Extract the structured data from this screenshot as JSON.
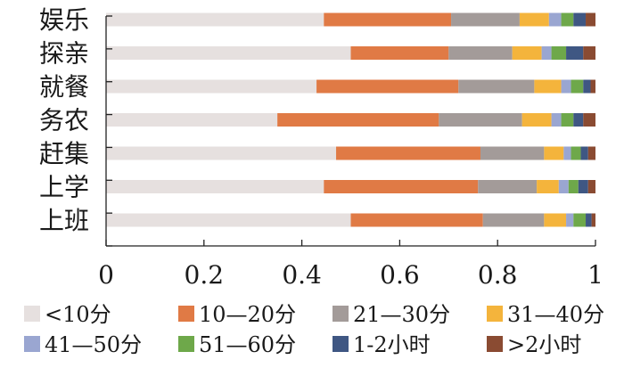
{
  "chart_data": {
    "type": "bar",
    "orientation": "horizontal",
    "stacked": true,
    "title": "",
    "xlabel": "",
    "ylabel": "",
    "xlim": [
      0,
      1
    ],
    "xticks": [
      "0",
      "0.2",
      "0.4",
      "0.6",
      "0.8",
      "1"
    ],
    "grid": false,
    "legend_position": "bottom",
    "categories": [
      "娱乐",
      "探亲",
      "就餐",
      "务农",
      "赶集",
      "上学",
      "上班"
    ],
    "series": [
      {
        "name": "<10分",
        "color": "#e6e0df",
        "values": [
          0.445,
          0.5,
          0.43,
          0.35,
          0.47,
          0.445,
          0.5
        ]
      },
      {
        "name": "10—20分",
        "color": "#e07a45",
        "values": [
          0.26,
          0.2,
          0.29,
          0.33,
          0.295,
          0.315,
          0.27
        ]
      },
      {
        "name": "21—30分",
        "color": "#a39b99",
        "values": [
          0.14,
          0.13,
          0.155,
          0.17,
          0.13,
          0.12,
          0.125
        ]
      },
      {
        "name": "31—40分",
        "color": "#f4b43c",
        "values": [
          0.06,
          0.06,
          0.055,
          0.06,
          0.04,
          0.045,
          0.045
        ]
      },
      {
        "name": "41—50分",
        "color": "#9aa6d1",
        "values": [
          0.025,
          0.02,
          0.02,
          0.02,
          0.015,
          0.02,
          0.015
        ]
      },
      {
        "name": "51—60分",
        "color": "#6ea84a",
        "values": [
          0.025,
          0.03,
          0.025,
          0.025,
          0.02,
          0.02,
          0.025
        ]
      },
      {
        "name": "1-2小时",
        "color": "#3f5783",
        "values": [
          0.025,
          0.035,
          0.015,
          0.02,
          0.015,
          0.02,
          0.012
        ]
      },
      {
        "name": ">2小时",
        "color": "#8a4b32",
        "values": [
          0.02,
          0.025,
          0.01,
          0.025,
          0.015,
          0.015,
          0.008
        ]
      }
    ]
  }
}
